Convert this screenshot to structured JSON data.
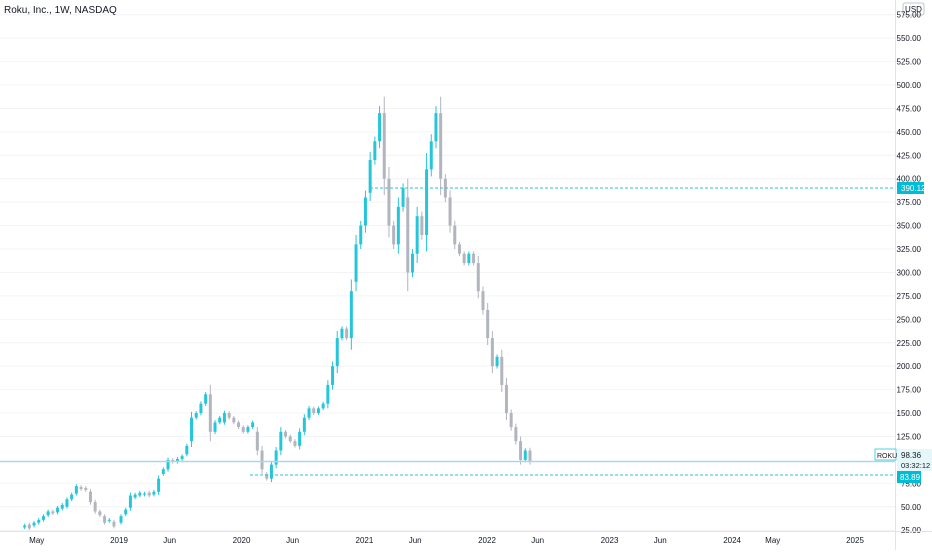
{
  "header": {
    "title": "Roku, Inc., 1W, NASDAQ"
  },
  "axis": {
    "currency": "USD",
    "y_ticks": [
      "575.00",
      "550.00",
      "525.00",
      "500.00",
      "475.00",
      "450.00",
      "425.00",
      "400.00",
      "375.00",
      "350.00",
      "325.00",
      "300.00",
      "275.00",
      "250.00",
      "225.00",
      "200.00",
      "175.00",
      "150.00",
      "125.00",
      "75.00",
      "50.00",
      "25.00"
    ],
    "x_ticks": [
      "May",
      "2019",
      "Jun",
      "2020",
      "Jun",
      "2021",
      "Jun",
      "2022",
      "Jun",
      "2023",
      "Jun",
      "2024",
      "May",
      "2025"
    ]
  },
  "price_labels": {
    "level_high": "390.12",
    "symbol": "ROKU",
    "last_price": "98.36",
    "countdown": "03:32:12",
    "level_low": "83.89"
  },
  "colors": {
    "up": "#26c6da",
    "down": "#b2b5be",
    "level_line": "#26c6da",
    "last_price_line": "#a8d8ea",
    "tag_bg": "#00bcd4",
    "axis_text": "#131722"
  },
  "chart_data": {
    "type": "candlestick",
    "title": "Roku, Inc., 1W, NASDAQ",
    "ylabel": "USD",
    "ylim": [
      10,
      580
    ],
    "x_axis_labels": [
      "May",
      "2019",
      "Jun",
      "2020",
      "Jun",
      "2021",
      "Jun",
      "2022",
      "Jun",
      "2023",
      "Jun",
      "2024",
      "May",
      "2025"
    ],
    "horizontal_levels": [
      390.12,
      83.89
    ],
    "last_price": 98.36,
    "series": [
      {
        "values": [
          [
            "2018-03-26",
            28,
            30
          ],
          [
            "2018-04-09",
            31,
            27
          ],
          [
            "2018-04-23",
            30,
            33
          ],
          [
            "2018-05-07",
            33,
            36
          ],
          [
            "2018-05-21",
            36,
            40
          ],
          [
            "2018-06-04",
            41,
            45
          ],
          [
            "2018-06-18",
            45,
            43
          ],
          [
            "2018-07-02",
            44,
            49
          ],
          [
            "2018-07-16",
            48,
            52
          ],
          [
            "2018-07-30",
            50,
            58
          ],
          [
            "2018-08-13",
            58,
            63
          ],
          [
            "2018-08-27",
            64,
            72
          ],
          [
            "2018-09-10",
            71,
            69
          ],
          [
            "2018-09-24",
            70,
            68
          ],
          [
            "2018-10-08",
            66,
            55
          ],
          [
            "2018-10-22",
            55,
            45
          ],
          [
            "2018-11-05",
            45,
            41
          ],
          [
            "2018-11-19",
            40,
            33
          ],
          [
            "2018-12-03",
            35,
            36
          ],
          [
            "2018-12-17",
            34,
            29
          ],
          [
            "2019-01-07",
            33,
            40
          ],
          [
            "2019-01-21",
            42,
            47
          ],
          [
            "2019-02-04",
            49,
            62
          ],
          [
            "2019-02-18",
            60,
            63
          ],
          [
            "2019-03-04",
            62,
            65
          ],
          [
            "2019-03-18",
            63,
            64
          ],
          [
            "2019-04-01",
            65,
            62
          ],
          [
            "2019-04-15",
            63,
            66
          ],
          [
            "2019-04-29",
            66,
            80
          ],
          [
            "2019-05-13",
            85,
            90
          ],
          [
            "2019-05-27",
            90,
            100
          ],
          [
            "2019-06-10",
            100,
            98
          ],
          [
            "2019-06-24",
            98,
            101
          ],
          [
            "2019-07-08",
            101,
            104
          ],
          [
            "2019-07-22",
            106,
            115
          ],
          [
            "2019-08-05",
            120,
            145
          ],
          [
            "2019-08-19",
            145,
            150
          ],
          [
            "2019-09-02",
            150,
            160
          ],
          [
            "2019-09-16",
            160,
            170
          ],
          [
            "2019-09-30",
            170,
            130
          ],
          [
            "2019-10-14",
            130,
            140
          ],
          [
            "2019-10-28",
            140,
            145
          ],
          [
            "2019-11-11",
            140,
            150
          ],
          [
            "2019-11-25",
            150,
            145
          ],
          [
            "2019-12-09",
            145,
            140
          ],
          [
            "2019-12-23",
            140,
            135
          ],
          [
            "2020-01-06",
            135,
            130
          ],
          [
            "2020-01-20",
            130,
            135
          ],
          [
            "2020-02-03",
            135,
            140
          ],
          [
            "2020-02-17",
            130,
            110
          ],
          [
            "2020-03-02",
            110,
            90
          ],
          [
            "2020-03-16",
            85,
            80
          ],
          [
            "2020-03-30",
            80,
            95
          ],
          [
            "2020-04-13",
            95,
            110
          ],
          [
            "2020-04-27",
            110,
            130
          ],
          [
            "2020-05-11",
            130,
            125
          ],
          [
            "2020-05-25",
            125,
            120
          ],
          [
            "2020-06-08",
            120,
            115
          ],
          [
            "2020-06-22",
            115,
            130
          ],
          [
            "2020-07-06",
            130,
            145
          ],
          [
            "2020-07-20",
            145,
            155
          ],
          [
            "2020-08-03",
            155,
            150
          ],
          [
            "2020-08-17",
            150,
            155
          ],
          [
            "2020-08-31",
            155,
            160
          ],
          [
            "2020-09-14",
            160,
            180
          ],
          [
            "2020-09-28",
            180,
            200
          ],
          [
            "2020-10-12",
            200,
            230
          ],
          [
            "2020-10-26",
            230,
            240
          ],
          [
            "2020-11-09",
            240,
            230
          ],
          [
            "2020-11-23",
            230,
            280
          ],
          [
            "2020-12-07",
            290,
            330
          ],
          [
            "2020-12-21",
            330,
            350
          ],
          [
            "2021-01-04",
            350,
            380
          ],
          [
            "2021-01-18",
            385,
            420
          ],
          [
            "2021-02-01",
            420,
            440
          ],
          [
            "2021-02-15",
            440,
            470
          ],
          [
            "2021-03-01",
            470,
            400
          ],
          [
            "2021-03-15",
            400,
            350
          ],
          [
            "2021-03-29",
            350,
            330
          ],
          [
            "2021-04-12",
            330,
            370
          ],
          [
            "2021-04-26",
            370,
            390
          ],
          [
            "2021-05-10",
            380,
            300
          ],
          [
            "2021-05-24",
            300,
            320
          ],
          [
            "2021-06-07",
            320,
            360
          ],
          [
            "2021-06-21",
            360,
            340
          ],
          [
            "2021-07-05",
            340,
            410
          ],
          [
            "2021-07-19",
            410,
            440
          ],
          [
            "2021-08-02",
            440,
            470
          ],
          [
            "2021-08-16",
            470,
            400
          ],
          [
            "2021-08-30",
            400,
            380
          ],
          [
            "2021-09-13",
            380,
            350
          ],
          [
            "2021-09-27",
            350,
            330
          ],
          [
            "2021-10-11",
            330,
            320
          ],
          [
            "2021-10-25",
            320,
            310
          ],
          [
            "2021-11-08",
            310,
            320
          ],
          [
            "2021-11-22",
            320,
            310
          ],
          [
            "2021-12-06",
            310,
            280
          ],
          [
            "2021-12-20",
            280,
            260
          ],
          [
            "2022-01-03",
            260,
            230
          ],
          [
            "2022-01-17",
            230,
            200
          ],
          [
            "2022-01-31",
            200,
            210
          ],
          [
            "2022-02-14",
            210,
            180
          ],
          [
            "2022-02-28",
            180,
            150
          ],
          [
            "2022-03-14",
            150,
            135
          ],
          [
            "2022-03-28",
            135,
            120
          ],
          [
            "2022-04-11",
            120,
            100
          ],
          [
            "2022-04-25",
            100,
            110
          ],
          [
            "2022-05-09",
            110,
            98
          ]
        ]
      }
    ]
  }
}
